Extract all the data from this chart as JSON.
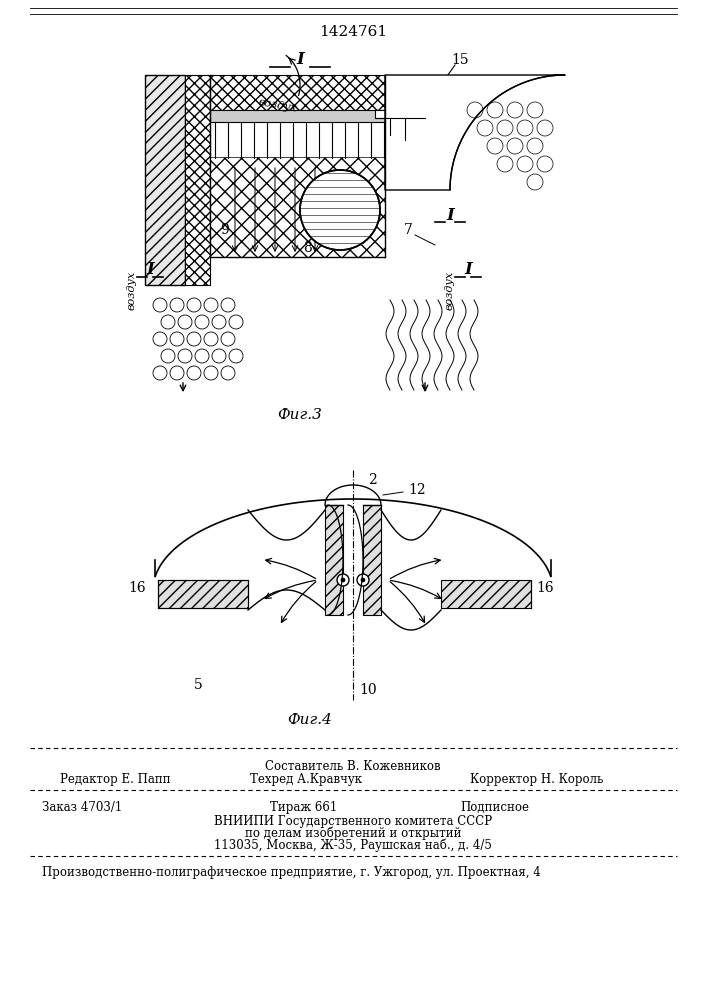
{
  "title": "1424761",
  "fig3_label": "Фиг.3",
  "fig4_label": "Фиг.4",
  "footer_line1_col1": "Редактор Е. Папп",
  "footer_line1_col2": "Составитель В. Кожевников",
  "footer_line1_col3": "Корректор Н. Король",
  "footer_line2_col2": "Техред А.Кравчук",
  "footer_line3_col1": "Заказ 4703/1",
  "footer_line3_col2": "Тираж 661",
  "footer_line3_col3": "Подписное",
  "footer_line4": "ВНИИПИ Государственного комитета СССР",
  "footer_line5": "по делам изобретений и открытий",
  "footer_line6": "113035, Москва, Ж-35, Раушская наб., д. 4/5",
  "footer_line7": "Производственно-полиграфическое предприятие, г. Ужгород, ул. Проектная, 4",
  "bg_color": "#ffffff",
  "line_color": "#000000"
}
